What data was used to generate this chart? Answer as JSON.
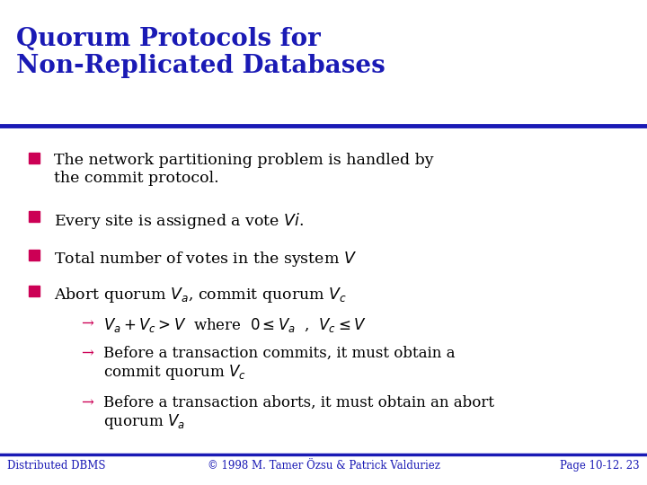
{
  "title_line1": "Quorum Protocols for",
  "title_line2": "Non-Replicated Databases",
  "title_color": "#1a1ab5",
  "title_fontsize": 20,
  "background_color": "#ffffff",
  "separator_color": "#1a1ab5",
  "bullet_color": "#cc0055",
  "arrow_color": "#cc0055",
  "body_color": "#000000",
  "body_fontsize": 12.5,
  "footer_color": "#1a1ab5",
  "footer_fontsize": 8.5,
  "footer_left": "Distributed DBMS",
  "footer_center": "© 1998 M. Tamer Özsu & Patrick Valduriez",
  "footer_right": "Page 10-12. 23"
}
